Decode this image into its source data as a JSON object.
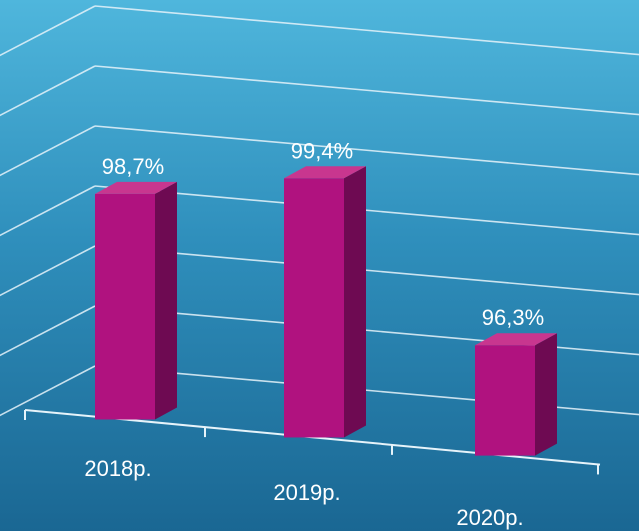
{
  "chart_data": {
    "type": "bar",
    "categories": [
      "2018р.",
      "2019р.",
      "2020р."
    ],
    "values": [
      98.7,
      99.4,
      96.3
    ],
    "data_labels": [
      "98,7%",
      "99,4%",
      "96,3%"
    ],
    "title": "",
    "xlabel": "",
    "ylabel": "",
    "ylim": [
      94.0,
      100.0
    ],
    "grid": true,
    "legend": "none",
    "colors": {
      "bar_front": "#b0127f",
      "bar_side": "#6e0a52",
      "bar_top": "#c8368f",
      "grid": "#e6f3fa",
      "background_top": "#4fb6dc",
      "background_bottom": "#1a6793"
    }
  }
}
